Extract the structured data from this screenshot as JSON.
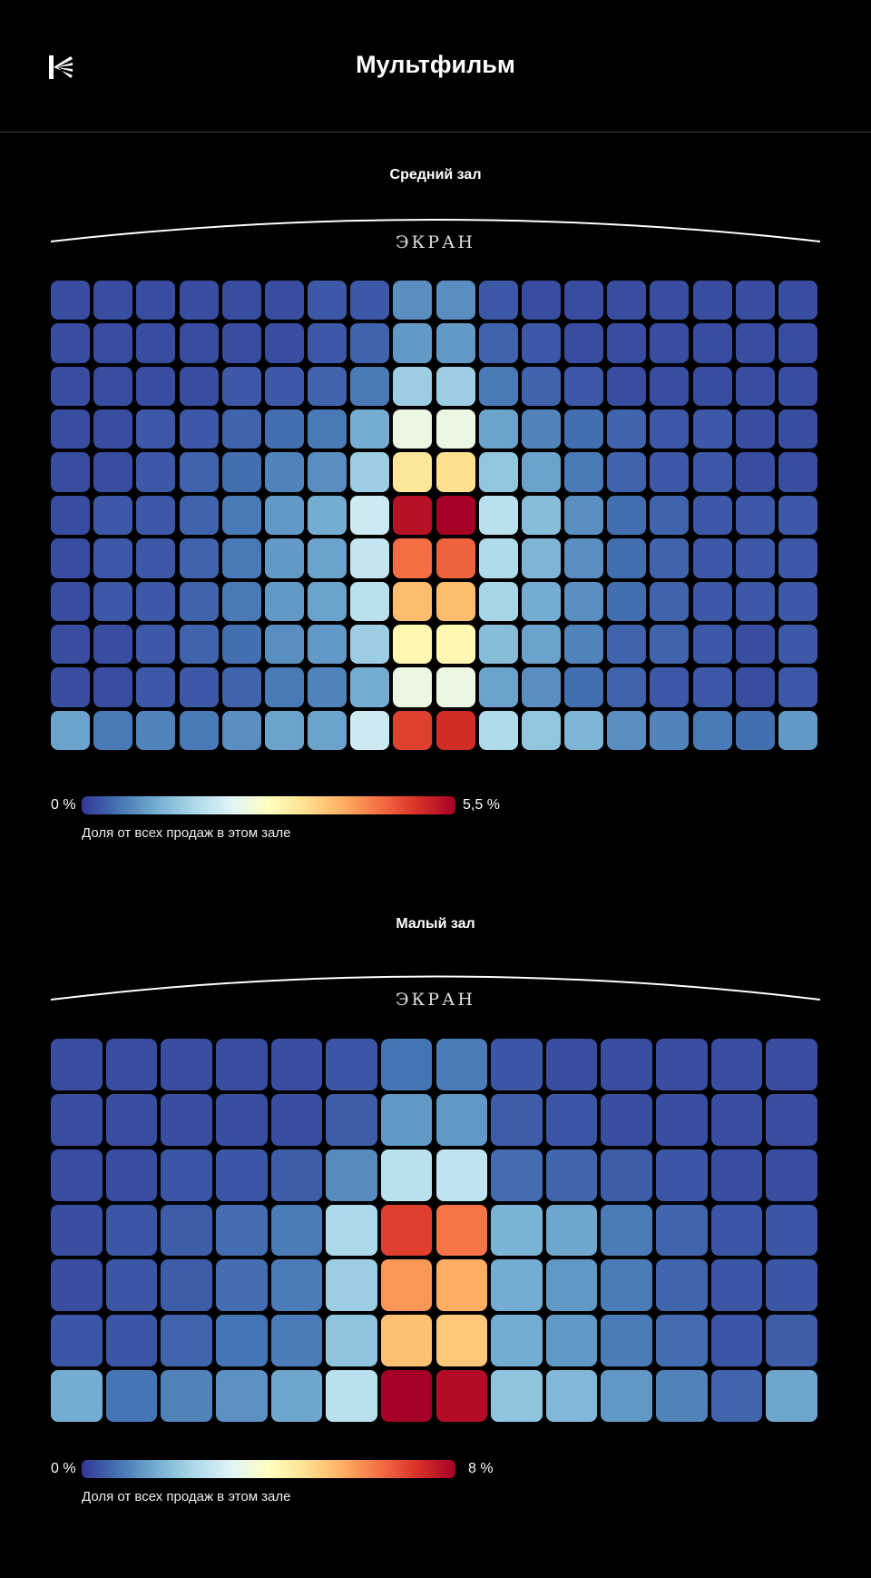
{
  "header": {
    "title": "Мультфильм",
    "logo_icon": "brand-logo-icon"
  },
  "legend_colors": [
    "#313695",
    "#4575b4",
    "#74add1",
    "#abd9e9",
    "#e0f3f8",
    "#ffffbf",
    "#fee090",
    "#fdae61",
    "#f46d43",
    "#d73027",
    "#a50026"
  ],
  "chart_data": [
    {
      "type": "heatmap",
      "title": "Средний зал",
      "screen_label": "ЭКРАН",
      "rows": 11,
      "cols": 18,
      "vmin": 0,
      "vmax": 5.5,
      "legend_min": "0 %",
      "legend_max": "5,5 %",
      "legend_caption": "Доля от всех продаж в этом зале",
      "values": [
        [
          0.2,
          0.2,
          0.2,
          0.2,
          0.2,
          0.2,
          0.3,
          0.3,
          0.8,
          0.8,
          0.3,
          0.2,
          0.2,
          0.2,
          0.2,
          0.2,
          0.2,
          0.2
        ],
        [
          0.2,
          0.2,
          0.2,
          0.2,
          0.2,
          0.2,
          0.3,
          0.4,
          0.9,
          0.9,
          0.4,
          0.3,
          0.2,
          0.2,
          0.2,
          0.2,
          0.2,
          0.2
        ],
        [
          0.2,
          0.2,
          0.2,
          0.2,
          0.3,
          0.3,
          0.4,
          0.6,
          1.5,
          1.5,
          0.6,
          0.4,
          0.3,
          0.2,
          0.2,
          0.2,
          0.2,
          0.2
        ],
        [
          0.2,
          0.2,
          0.3,
          0.3,
          0.4,
          0.5,
          0.6,
          1.1,
          2.4,
          2.4,
          1.0,
          0.7,
          0.5,
          0.4,
          0.3,
          0.3,
          0.2,
          0.2
        ],
        [
          0.2,
          0.2,
          0.3,
          0.4,
          0.5,
          0.7,
          0.8,
          1.5,
          3.2,
          3.3,
          1.4,
          1.0,
          0.6,
          0.4,
          0.3,
          0.3,
          0.2,
          0.2
        ],
        [
          0.2,
          0.3,
          0.3,
          0.4,
          0.6,
          0.9,
          1.1,
          2.0,
          5.3,
          5.5,
          1.8,
          1.3,
          0.8,
          0.5,
          0.4,
          0.3,
          0.3,
          0.3
        ],
        [
          0.2,
          0.3,
          0.3,
          0.4,
          0.6,
          0.9,
          1.0,
          1.9,
          4.4,
          4.5,
          1.7,
          1.2,
          0.8,
          0.5,
          0.4,
          0.3,
          0.3,
          0.3
        ],
        [
          0.2,
          0.3,
          0.3,
          0.4,
          0.6,
          0.9,
          1.0,
          1.8,
          3.7,
          3.7,
          1.6,
          1.1,
          0.8,
          0.5,
          0.4,
          0.3,
          0.3,
          0.3
        ],
        [
          0.2,
          0.2,
          0.3,
          0.4,
          0.5,
          0.8,
          0.9,
          1.5,
          2.9,
          2.9,
          1.3,
          1.0,
          0.7,
          0.4,
          0.4,
          0.3,
          0.2,
          0.3
        ],
        [
          0.2,
          0.2,
          0.3,
          0.3,
          0.4,
          0.6,
          0.7,
          1.1,
          2.4,
          2.4,
          1.0,
          0.8,
          0.5,
          0.4,
          0.3,
          0.3,
          0.2,
          0.3
        ],
        [
          1.0,
          0.6,
          0.7,
          0.6,
          0.8,
          1.0,
          1.0,
          2.0,
          4.8,
          5.0,
          1.7,
          1.4,
          1.2,
          0.8,
          0.7,
          0.6,
          0.5,
          0.9
        ]
      ]
    },
    {
      "type": "heatmap",
      "title": "Малый зал",
      "screen_label": "ЭКРАН",
      "rows": 7,
      "cols": 14,
      "vmin": 0,
      "vmax": 8,
      "legend_min": "0 %",
      "legend_max": "8 %",
      "legend_caption": "Доля от всех продаж в этом зале",
      "values": [
        [
          0.3,
          0.3,
          0.3,
          0.3,
          0.3,
          0.4,
          0.8,
          0.9,
          0.4,
          0.3,
          0.3,
          0.3,
          0.3,
          0.3
        ],
        [
          0.3,
          0.3,
          0.3,
          0.3,
          0.3,
          0.5,
          1.3,
          1.3,
          0.5,
          0.4,
          0.3,
          0.3,
          0.3,
          0.3
        ],
        [
          0.3,
          0.3,
          0.4,
          0.4,
          0.5,
          1.1,
          2.6,
          2.7,
          0.7,
          0.6,
          0.5,
          0.4,
          0.3,
          0.3
        ],
        [
          0.3,
          0.4,
          0.5,
          0.7,
          0.9,
          2.4,
          7.0,
          6.3,
          1.7,
          1.5,
          0.9,
          0.6,
          0.4,
          0.4
        ],
        [
          0.3,
          0.4,
          0.5,
          0.7,
          0.9,
          2.2,
          5.9,
          5.6,
          1.6,
          1.3,
          0.9,
          0.6,
          0.4,
          0.4
        ],
        [
          0.4,
          0.4,
          0.6,
          0.8,
          0.9,
          2.0,
          5.3,
          5.2,
          1.6,
          1.3,
          0.9,
          0.7,
          0.4,
          0.5
        ],
        [
          1.6,
          0.8,
          1.0,
          1.2,
          1.5,
          2.6,
          8.0,
          7.8,
          2.0,
          1.8,
          1.3,
          1.0,
          0.6,
          1.5
        ]
      ]
    }
  ]
}
